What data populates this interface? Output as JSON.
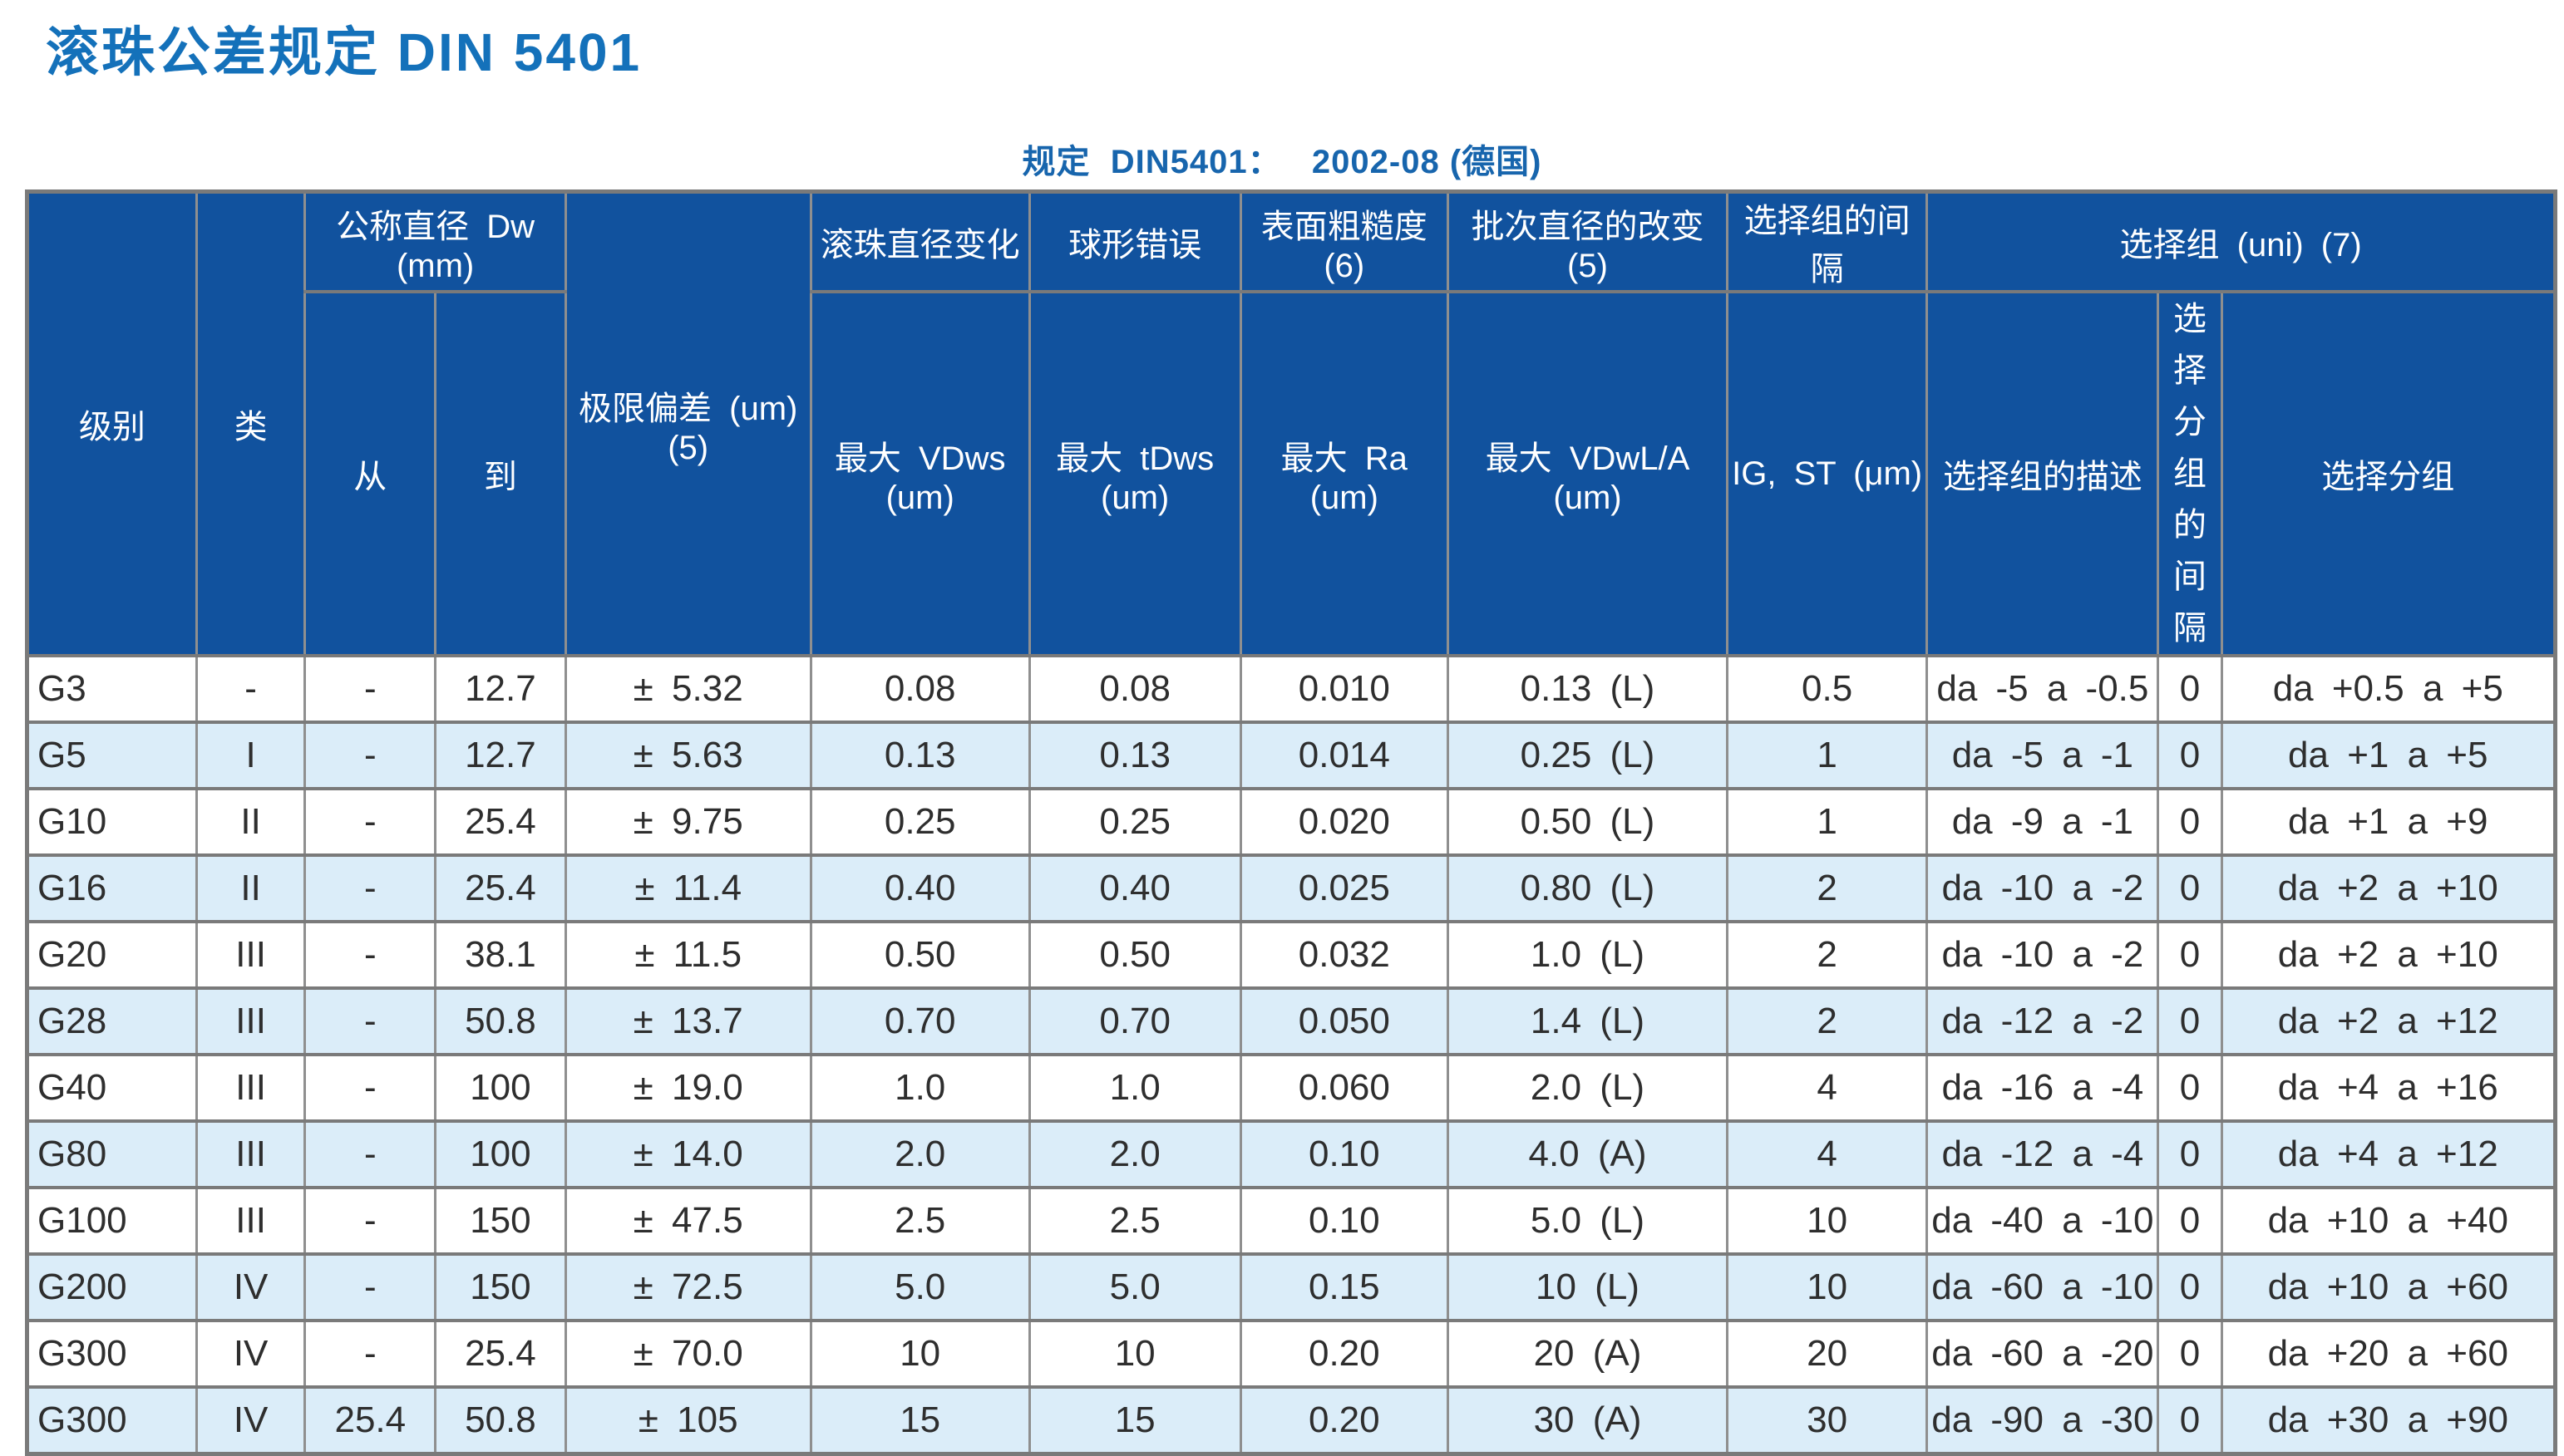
{
  "page": {
    "title": "滚珠公差规定 DIN 5401",
    "subtitle": "规定  DIN5401：   2002-08 (德国)"
  },
  "colors": {
    "header_bg": "#11529e",
    "row_alt_bg": "#dbedf9",
    "title_blue": "#1471ba",
    "subtitle_blue": "#1765ad",
    "border_gray": "#7a7a7a"
  },
  "table": {
    "header": {
      "level": "级别",
      "class": "类",
      "nominal_diameter_group": "公称直径 Dw (mm)",
      "from": "从",
      "to": "到",
      "limit_deviation": "极限偏差 (um) (5)",
      "diameter_variation_group": "滚珠直径变化",
      "diameter_variation_sub": "最大 VDws (um)",
      "spherical_error_group": "球形错误",
      "spherical_error_sub": "最大 tDws (um)",
      "surface_roughness_group": "表面粗糙度 (6)",
      "surface_roughness_sub": "最大 Ra (um)",
      "lot_diameter_change_group": "批次直径的改变 (5)",
      "lot_diameter_change_sub": "最大 VDwL/A (um)",
      "selection_gap_group": "选择组的间隔",
      "selection_gap_sub": "IG, ST (μm)",
      "selection_group": "选择组 (uni) (7)",
      "selection_group_desc": "选择组的描述",
      "selection_subgroup_gap": "选择\n分组\n的间\n隔",
      "selection_subgroup": "选择分组"
    },
    "rows": [
      [
        "G3",
        "-",
        "-",
        "12.7",
        "± 5.32",
        "0.08",
        "0.08",
        "0.010",
        "0.13 (L)",
        "0.5",
        "da -5 a -0.5",
        "0",
        "da +0.5 a +5"
      ],
      [
        "G5",
        "I",
        "-",
        "12.7",
        "± 5.63",
        "0.13",
        "0.13",
        "0.014",
        "0.25 (L)",
        "1",
        "da -5 a -1",
        "0",
        "da +1 a +5"
      ],
      [
        "G10",
        "II",
        "-",
        "25.4",
        "± 9.75",
        "0.25",
        "0.25",
        "0.020",
        "0.50 (L)",
        "1",
        "da -9 a -1",
        "0",
        "da +1 a +9"
      ],
      [
        "G16",
        "II",
        "-",
        "25.4",
        "± 11.4",
        "0.40",
        "0.40",
        "0.025",
        "0.80 (L)",
        "2",
        "da -10 a -2",
        "0",
        "da +2 a +10"
      ],
      [
        "G20",
        "III",
        "-",
        "38.1",
        "± 11.5",
        "0.50",
        "0.50",
        "0.032",
        "1.0 (L)",
        "2",
        "da -10 a -2",
        "0",
        "da +2 a +10"
      ],
      [
        "G28",
        "III",
        "-",
        "50.8",
        "± 13.7",
        "0.70",
        "0.70",
        "0.050",
        "1.4 (L)",
        "2",
        "da -12 a -2",
        "0",
        "da +2 a +12"
      ],
      [
        "G40",
        "III",
        "-",
        "100",
        "± 19.0",
        "1.0",
        "1.0",
        "0.060",
        "2.0 (L)",
        "4",
        "da -16 a -4",
        "0",
        "da +4 a +16"
      ],
      [
        "G80",
        "III",
        "-",
        "100",
        "± 14.0",
        "2.0",
        "2.0",
        "0.10",
        "4.0 (A)",
        "4",
        "da -12 a -4",
        "0",
        "da +4 a +12"
      ],
      [
        "G100",
        "III",
        "-",
        "150",
        "± 47.5",
        "2.5",
        "2.5",
        "0.10",
        "5.0 (L)",
        "10",
        "da -40 a -10",
        "0",
        "da +10 a +40"
      ],
      [
        "G200",
        "IV",
        "-",
        "150",
        "± 72.5",
        "5.0",
        "5.0",
        "0.15",
        "10 (L)",
        "10",
        "da -60 a -10",
        "0",
        "da +10 a +60"
      ],
      [
        "G300",
        "IV",
        "-",
        "25.4",
        "± 70.0",
        "10",
        "10",
        "0.20",
        "20 (A)",
        "20",
        "da -60 a -20",
        "0",
        "da +20 a +60"
      ],
      [
        "G300",
        "IV",
        "25.4",
        "50.8",
        "± 105",
        "15",
        "15",
        "0.20",
        "30 (A)",
        "30",
        "da -90 a -30",
        "0",
        "da +30 a +90"
      ]
    ]
  }
}
